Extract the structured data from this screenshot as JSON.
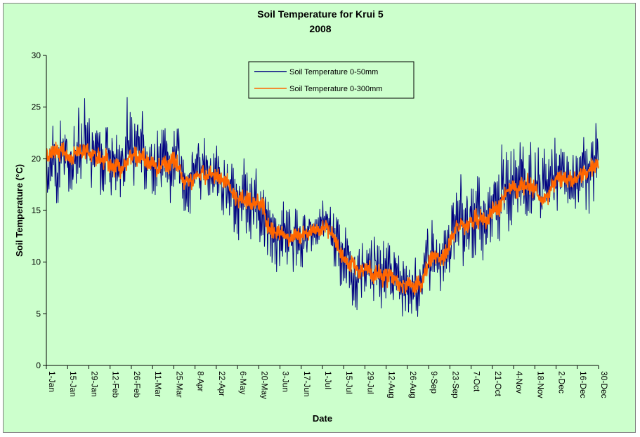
{
  "chart_data": {
    "type": "line",
    "title": "Soil Temperature for Krui 5",
    "subtitle": "2008",
    "xlabel": "Date",
    "ylabel": "Soil Temperature (°C)",
    "ylim": [
      0,
      30
    ],
    "yticks": [
      0,
      5,
      10,
      15,
      20,
      25,
      30
    ],
    "xlim_days": [
      0,
      364
    ],
    "xticks": [
      "1-Jan",
      "15-Jan",
      "29-Jan",
      "12-Feb",
      "26-Feb",
      "11-Mar",
      "25-Mar",
      "8-Apr",
      "22-Apr",
      "6-May",
      "20-May",
      "3-Jun",
      "17-Jun",
      "1-Jul",
      "15-Jul",
      "29-Jul",
      "12-Aug",
      "26-Aug",
      "9-Sep",
      "23-Sep",
      "7-Oct",
      "21-Oct",
      "4-Nov",
      "18-Nov",
      "2-Dec",
      "16-Dec",
      "30-Dec"
    ],
    "grid": false,
    "legend_position": "top-center",
    "series": [
      {
        "name": "Soil Temperature 0-50mm",
        "color": "#000080",
        "daily_mean": [
          20.2,
          20.5,
          20.9,
          20.3,
          19.8,
          20.8,
          21.0,
          20.6,
          20.4,
          19.7,
          20.1,
          19.0,
          18.8,
          20.6,
          20.9,
          20.7,
          20.2,
          19.5,
          19.0,
          19.8,
          19.3,
          20.0,
          17.5,
          17.2,
          18.5,
          18.8,
          18.4,
          18.6,
          18.0,
          17.6,
          16.4,
          15.8,
          16.1,
          15.6,
          15.4,
          15.2,
          12.6,
          12.8,
          13.0,
          12.2,
          12.7,
          12.4,
          12.9,
          13.4,
          13.1,
          13.8,
          12.6,
          11.0,
          10.4,
          9.8,
          9.2,
          9.0,
          9.4,
          9.1,
          8.7,
          8.5,
          7.9,
          7.8,
          7.5,
          7.6,
          7.9,
          9.3,
          11.0,
          10.8,
          10.3,
          12.1,
          13.8,
          13.9,
          13.7,
          14.5,
          14.2,
          13.6,
          15.6,
          15.4,
          17.6,
          17.2,
          16.8,
          17.9,
          17.6,
          16.4,
          15.4,
          17.2,
          18.7,
          18.5,
          18.3,
          17.7,
          18.9,
          18.9,
          19.6,
          20.3
        ],
        "daily_range": [
          3.5,
          3.8,
          4.0,
          3.5,
          3.6,
          4.2,
          4.0,
          3.8,
          3.6,
          3.8,
          3.6,
          3.5,
          4.0,
          4.2,
          4.0,
          3.8,
          3.6,
          3.5,
          3.4,
          3.6,
          3.5,
          3.5,
          3.8,
          3.8,
          3.6,
          3.5,
          3.2,
          3.0,
          3.0,
          3.2,
          3.8,
          4.0,
          3.8,
          3.5,
          3.4,
          3.6,
          4.2,
          4.0,
          3.8,
          3.6,
          3.5,
          3.4,
          2.2,
          2.0,
          2.0,
          2.0,
          2.8,
          3.5,
          3.6,
          3.8,
          3.8,
          3.5,
          3.6,
          3.6,
          3.6,
          3.4,
          3.4,
          3.2,
          3.0,
          3.0,
          3.0,
          2.8,
          2.8,
          3.0,
          3.2,
          3.8,
          4.0,
          4.2,
          4.2,
          4.5,
          4.2,
          4.0,
          4.0,
          4.2,
          4.2,
          4.0,
          4.2,
          4.2,
          4.4,
          4.6,
          4.2,
          3.8,
          4.2,
          4.2,
          4.0,
          4.0,
          4.2,
          4.2,
          4.0,
          3.8
        ]
      },
      {
        "name": "Soil Temperature  0-300mm",
        "color": "#ff6600",
        "daily_mean": [
          20.2,
          20.4,
          20.7,
          20.4,
          20.0,
          20.6,
          20.8,
          20.6,
          20.4,
          19.9,
          19.9,
          19.3,
          19.1,
          20.0,
          20.3,
          20.2,
          19.9,
          19.5,
          19.2,
          19.5,
          19.3,
          19.6,
          17.9,
          17.5,
          18.3,
          18.6,
          18.4,
          18.4,
          18.1,
          17.8,
          16.6,
          16.1,
          16.2,
          15.9,
          15.6,
          15.3,
          13.2,
          12.9,
          12.8,
          12.4,
          12.5,
          12.4,
          12.7,
          13.3,
          13.2,
          13.5,
          12.8,
          11.3,
          10.6,
          10.0,
          9.5,
          9.2,
          9.3,
          9.1,
          8.8,
          8.6,
          8.1,
          7.9,
          7.7,
          7.6,
          7.8,
          8.8,
          10.6,
          10.8,
          10.5,
          11.6,
          13.0,
          13.6,
          13.7,
          14.2,
          14.1,
          13.8,
          15.0,
          15.3,
          16.9,
          17.1,
          16.9,
          17.4,
          17.5,
          16.8,
          15.8,
          16.6,
          18.0,
          18.3,
          18.2,
          17.9,
          18.4,
          18.7,
          19.2,
          19.8
        ],
        "daily_range": [
          1.0,
          1.0,
          1.0,
          1.0,
          1.0,
          1.0,
          1.0,
          1.0,
          1.0,
          1.0,
          1.0,
          1.0,
          1.0,
          1.0,
          1.0,
          1.0,
          1.0,
          1.0,
          1.0,
          1.0,
          1.0,
          1.0,
          1.0,
          1.0,
          1.0,
          1.0,
          1.0,
          1.0,
          1.0,
          1.0,
          1.0,
          1.0,
          1.0,
          1.0,
          1.0,
          1.0,
          1.0,
          1.0,
          1.0,
          1.0,
          1.0,
          1.0,
          0.8,
          0.8,
          0.8,
          0.8,
          1.0,
          1.0,
          1.0,
          1.0,
          1.0,
          1.0,
          1.0,
          1.0,
          1.0,
          1.0,
          1.0,
          1.0,
          1.0,
          1.0,
          1.0,
          1.0,
          1.0,
          1.0,
          1.0,
          1.0,
          1.0,
          1.0,
          1.0,
          1.0,
          1.0,
          1.0,
          1.0,
          1.0,
          1.0,
          1.0,
          1.0,
          1.0,
          1.0,
          1.0,
          1.0,
          1.0,
          1.0,
          1.0,
          1.0,
          1.0,
          1.0,
          1.0,
          1.0,
          1.0
        ]
      }
    ]
  }
}
